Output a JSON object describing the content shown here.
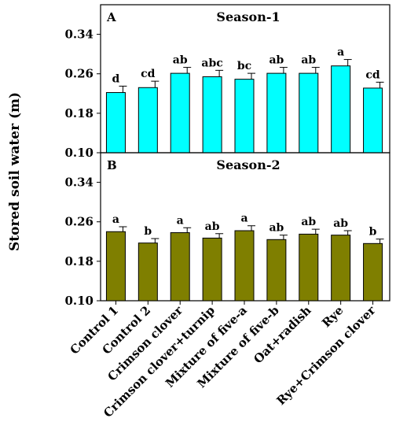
{
  "chart_data": {
    "type": "bar",
    "ylabel": "Stored soil water (m)",
    "categories": [
      "Control 1",
      "Control 2",
      "Crimson clover",
      "Crimson clover+turnip",
      "Mixture of five-a",
      "Mixture of five-b",
      "Oat+radish",
      "Rye",
      "Rye+Crimson clover"
    ],
    "ylim": [
      0.1,
      0.4
    ],
    "yticks": [
      "0.10",
      "0.18",
      "0.26",
      "0.34"
    ],
    "grid": false,
    "panels": [
      {
        "letter": "A",
        "title": "Season-1",
        "color": "#00FFFF",
        "values": [
          0.222,
          0.232,
          0.261,
          0.254,
          0.249,
          0.261,
          0.261,
          0.276,
          0.231
        ],
        "errors": [
          0.013,
          0.013,
          0.012,
          0.013,
          0.012,
          0.012,
          0.012,
          0.013,
          0.012
        ],
        "significance": [
          "d",
          "cd",
          "ab",
          "abc",
          "bc",
          "ab",
          "ab",
          "a",
          "cd"
        ]
      },
      {
        "letter": "B",
        "title": "Season-2",
        "color": "#7F7F00",
        "values": [
          0.24,
          0.217,
          0.238,
          0.227,
          0.242,
          0.224,
          0.235,
          0.233,
          0.216
        ],
        "errors": [
          0.01,
          0.009,
          0.01,
          0.009,
          0.01,
          0.009,
          0.01,
          0.009,
          0.009
        ],
        "significance": [
          "a",
          "b",
          "a",
          "ab",
          "a",
          "ab",
          "ab",
          "ab",
          "b"
        ]
      }
    ]
  }
}
